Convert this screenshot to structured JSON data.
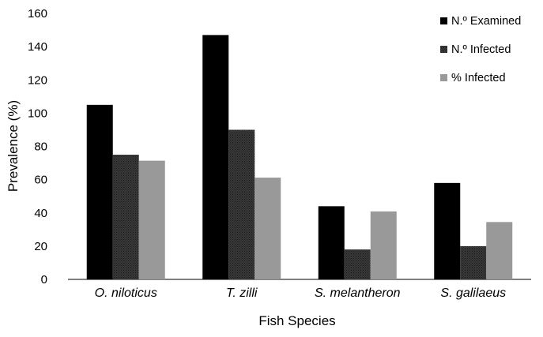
{
  "chart_data": {
    "type": "bar",
    "title": "",
    "xlabel": "Fish Species",
    "ylabel": "Prevalence (%)",
    "categories": [
      "O. niloticus",
      "T. zilli",
      "S. melantheron",
      "S. galilaeus"
    ],
    "series": [
      {
        "name": "N.º Examined",
        "color": "#000000",
        "pattern": "solid",
        "values": [
          105,
          147,
          44,
          58
        ]
      },
      {
        "name": "N.º Infected",
        "color": "#2b2b2b",
        "pattern": "dotted",
        "values": [
          75,
          90,
          18,
          20
        ]
      },
      {
        "name": "% Infected",
        "color": "#999999",
        "pattern": "solid",
        "values": [
          71.4,
          61.2,
          40.9,
          34.5
        ]
      }
    ],
    "ylim": [
      0,
      160
    ],
    "yticks": [
      "0",
      "20",
      "40",
      "60",
      "80",
      "100",
      "120",
      "140",
      "160"
    ],
    "grid": false,
    "legend_position": "top-right"
  }
}
